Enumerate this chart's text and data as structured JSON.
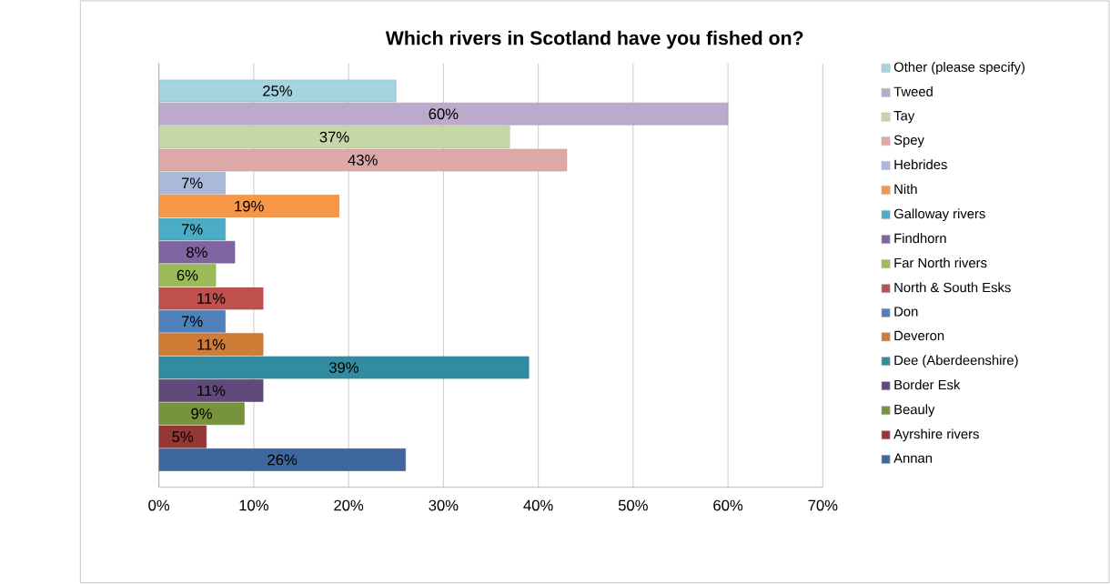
{
  "chart_data": {
    "type": "bar",
    "orientation": "horizontal",
    "title": "Which rivers in Scotland have you fished on?",
    "categories": [
      null
    ],
    "series": [
      {
        "name": "Other (please specify)",
        "color": "#a5d3e0",
        "values": [
          25
        ],
        "value_labels": [
          "25%"
        ]
      },
      {
        "name": "Tweed",
        "color": "#bbaacb",
        "values": [
          60
        ],
        "value_labels": [
          "60%"
        ]
      },
      {
        "name": "Tay",
        "color": "#c6d7a8",
        "values": [
          37
        ],
        "value_labels": [
          "37%"
        ]
      },
      {
        "name": "Spey",
        "color": "#dca9a8",
        "values": [
          43
        ],
        "value_labels": [
          "43%"
        ]
      },
      {
        "name": "Hebrides",
        "color": "#a9b9d9",
        "values": [
          7
        ],
        "value_labels": [
          "7%"
        ]
      },
      {
        "name": "Nith",
        "color": "#f79646",
        "values": [
          19
        ],
        "value_labels": [
          "19%"
        ]
      },
      {
        "name": "Galloway rivers",
        "color": "#4bacc6",
        "values": [
          7
        ],
        "value_labels": [
          "7%"
        ]
      },
      {
        "name": "Findhorn",
        "color": "#8064a2",
        "values": [
          8
        ],
        "value_labels": [
          "8%"
        ]
      },
      {
        "name": "Far North rivers",
        "color": "#9bbb59",
        "values": [
          6
        ],
        "value_labels": [
          "6%"
        ]
      },
      {
        "name": "North & South Esks",
        "color": "#c0504d",
        "values": [
          11
        ],
        "value_labels": [
          "11%"
        ]
      },
      {
        "name": "Don",
        "color": "#4f81bd",
        "values": [
          7
        ],
        "value_labels": [
          "7%"
        ]
      },
      {
        "name": "Deveron",
        "color": "#d07c37",
        "values": [
          11
        ],
        "value_labels": [
          "11%"
        ]
      },
      {
        "name": "Dee (Aberdeenshire)",
        "color": "#338ba0",
        "values": [
          39
        ],
        "value_labels": [
          "39%"
        ]
      },
      {
        "name": "Border Esk",
        "color": "#604a7b",
        "values": [
          11
        ],
        "value_labels": [
          "11%"
        ]
      },
      {
        "name": "Beauly",
        "color": "#77933c",
        "values": [
          9
        ],
        "value_labels": [
          "9%"
        ]
      },
      {
        "name": "Ayrshire rivers",
        "color": "#953735",
        "values": [
          5
        ],
        "value_labels": [
          "5%"
        ]
      },
      {
        "name": "Annan",
        "color": "#3d679e",
        "values": [
          26
        ],
        "value_labels": [
          "26%"
        ]
      }
    ],
    "xlim": [
      0,
      70
    ],
    "xticks": [
      {
        "value": 0,
        "label": "0%"
      },
      {
        "value": 10,
        "label": "10%"
      },
      {
        "value": 20,
        "label": "20%"
      },
      {
        "value": 30,
        "label": "30%"
      },
      {
        "value": 40,
        "label": "40%"
      },
      {
        "value": 50,
        "label": "50%"
      },
      {
        "value": 60,
        "label": "60%"
      },
      {
        "value": 70,
        "label": "70%"
      }
    ],
    "grid": "x",
    "legend": "right"
  }
}
